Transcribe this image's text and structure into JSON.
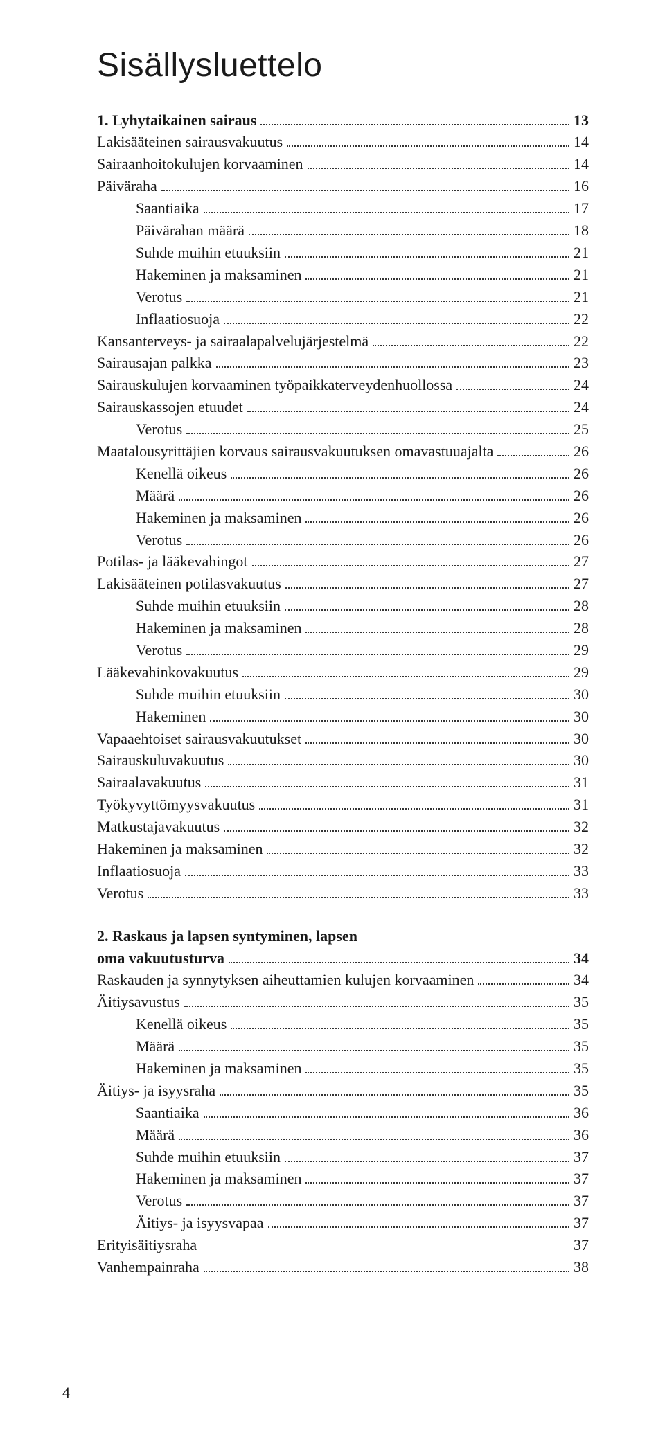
{
  "title": "Sisällysluettelo",
  "footer_page": "4",
  "toc": [
    {
      "label": "1. Lyhytaikainen sairaus",
      "page": "13",
      "bold": true,
      "indent": 0
    },
    {
      "label": "Lakisääteinen sairausvakuutus",
      "page": "14",
      "bold": false,
      "indent": 2
    },
    {
      "label": "Sairaanhoitokulujen korvaaminen",
      "page": "14",
      "bold": false,
      "indent": 2
    },
    {
      "label": "Päiväraha",
      "page": "16",
      "bold": false,
      "indent": 2
    },
    {
      "label": "Saantiaika",
      "page": "17",
      "bold": false,
      "indent": 1
    },
    {
      "label": "Päivärahan määrä",
      "page": "18",
      "bold": false,
      "indent": 1
    },
    {
      "label": "Suhde muihin etuuksiin",
      "page": "21",
      "bold": false,
      "indent": 1
    },
    {
      "label": "Hakeminen ja maksaminen",
      "page": "21",
      "bold": false,
      "indent": 1
    },
    {
      "label": "Verotus",
      "page": "21",
      "bold": false,
      "indent": 1
    },
    {
      "label": "Inflaatiosuoja",
      "page": "22",
      "bold": false,
      "indent": 1
    },
    {
      "label": "Kansanterveys- ja sairaalapalvelujärjestelmä",
      "page": "22",
      "bold": false,
      "indent": 2
    },
    {
      "label": "Sairausajan palkka",
      "page": "23",
      "bold": false,
      "indent": 2
    },
    {
      "label": "Sairauskulujen korvaaminen työpaikkaterveydenhuollossa",
      "page": "24",
      "bold": false,
      "indent": 2
    },
    {
      "label": "Sairauskassojen etuudet",
      "page": "24",
      "bold": false,
      "indent": 2
    },
    {
      "label": "Verotus",
      "page": "25",
      "bold": false,
      "indent": 1
    },
    {
      "label": "Maatalousyrittäjien korvaus sairausvakuutuksen omavastuuajalta",
      "page": "26",
      "bold": false,
      "indent": 2
    },
    {
      "label": "Kenellä oikeus",
      "page": "26",
      "bold": false,
      "indent": 1
    },
    {
      "label": "Määrä",
      "page": "26",
      "bold": false,
      "indent": 1
    },
    {
      "label": "Hakeminen ja maksaminen",
      "page": "26",
      "bold": false,
      "indent": 1
    },
    {
      "label": "Verotus",
      "page": "26",
      "bold": false,
      "indent": 1
    },
    {
      "label": "Potilas- ja lääkevahingot",
      "page": "27",
      "bold": false,
      "indent": 2
    },
    {
      "label": "Lakisääteinen potilasvakuutus",
      "page": "27",
      "bold": false,
      "indent": 2
    },
    {
      "label": "Suhde muihin etuuksiin",
      "page": "28",
      "bold": false,
      "indent": 1
    },
    {
      "label": "Hakeminen ja maksaminen",
      "page": "28",
      "bold": false,
      "indent": 1
    },
    {
      "label": "Verotus",
      "page": "29",
      "bold": false,
      "indent": 1
    },
    {
      "label": "Lääkevahinkovakuutus",
      "page": "29",
      "bold": false,
      "indent": 2
    },
    {
      "label": "Suhde muihin etuuksiin",
      "page": "30",
      "bold": false,
      "indent": 1
    },
    {
      "label": "Hakeminen",
      "page": "30",
      "bold": false,
      "indent": 1
    },
    {
      "label": "Vapaaehtoiset sairausvakuutukset",
      "page": "30",
      "bold": false,
      "indent": 2
    },
    {
      "label": "Sairauskuluvakuutus",
      "page": "30",
      "bold": false,
      "indent": 2
    },
    {
      "label": "Sairaalavakuutus",
      "page": "31",
      "bold": false,
      "indent": 2
    },
    {
      "label": "Työkyvyttömyysvakuutus",
      "page": "31",
      "bold": false,
      "indent": 2
    },
    {
      "label": "Matkustajavakuutus",
      "page": "32",
      "bold": false,
      "indent": 2
    },
    {
      "label": "Hakeminen ja maksaminen",
      "page": "32",
      "bold": false,
      "indent": 2
    },
    {
      "label": "Inflaatiosuoja",
      "page": "33",
      "bold": false,
      "indent": 2
    },
    {
      "label": "Verotus",
      "page": "33",
      "bold": false,
      "indent": 2
    }
  ],
  "chapter2": {
    "line1": "2. Raskaus ja lapsen syntyminen, lapsen",
    "line2": "oma vakuutusturva",
    "page": "34"
  },
  "toc2": [
    {
      "label": "Raskauden ja synnytyksen aiheuttamien kulujen korvaaminen",
      "page": "34",
      "bold": false,
      "indent": 2
    },
    {
      "label": "Äitiysavustus",
      "page": "35",
      "bold": false,
      "indent": 2
    },
    {
      "label": "Kenellä oikeus",
      "page": "35",
      "bold": false,
      "indent": 1
    },
    {
      "label": "Määrä",
      "page": "35",
      "bold": false,
      "indent": 1
    },
    {
      "label": "Hakeminen ja maksaminen",
      "page": "35",
      "bold": false,
      "indent": 1
    },
    {
      "label": "Äitiys- ja isyysraha",
      "page": "35",
      "bold": false,
      "indent": 2
    },
    {
      "label": "Saantiaika",
      "page": "36",
      "bold": false,
      "indent": 1
    },
    {
      "label": "Määrä",
      "page": "36",
      "bold": false,
      "indent": 1
    },
    {
      "label": "Suhde muihin etuuksiin",
      "page": "37",
      "bold": false,
      "indent": 1
    },
    {
      "label": "Hakeminen ja maksaminen",
      "page": "37",
      "bold": false,
      "indent": 1
    },
    {
      "label": "Verotus",
      "page": "37",
      "bold": false,
      "indent": 1
    },
    {
      "label": "Äitiys- ja isyysvapaa",
      "page": "37",
      "bold": false,
      "indent": 1
    },
    {
      "label": "Erityisäitiysraha",
      "page": "37",
      "bold": false,
      "indent": 2,
      "nodots": true
    },
    {
      "label": "Vanhempainraha",
      "page": "38",
      "bold": false,
      "indent": 2
    }
  ]
}
